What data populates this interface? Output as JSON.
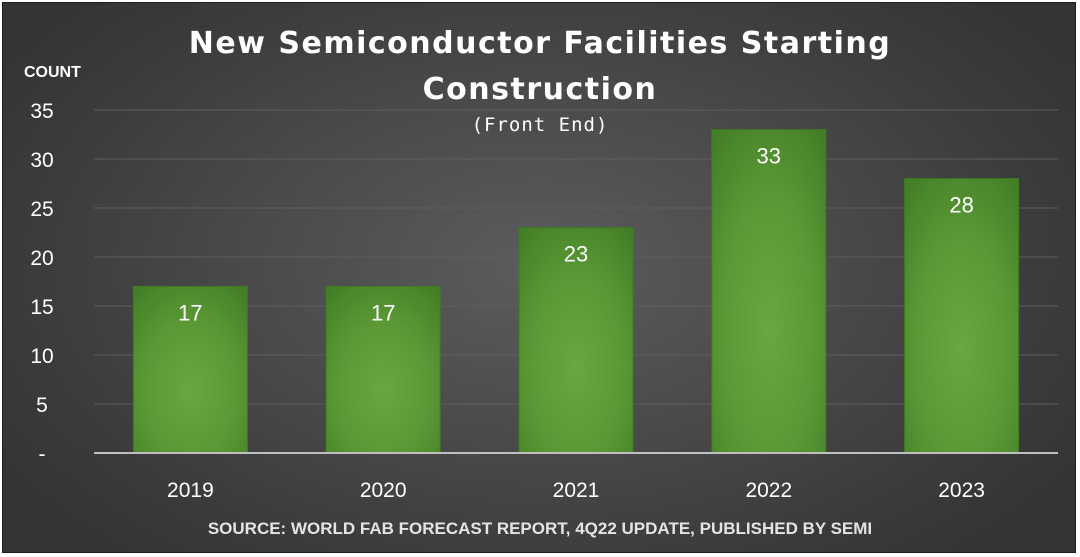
{
  "chart_data": {
    "type": "bar",
    "title_lines": [
      "New Semiconductor Facilities Starting",
      "Construction"
    ],
    "subtitle": "(Front End)",
    "ylabel": "COUNT",
    "xlabel": "",
    "categories": [
      "2019",
      "2020",
      "2021",
      "2022",
      "2023"
    ],
    "values": [
      17,
      17,
      23,
      33,
      28
    ],
    "data_labels": [
      "17",
      "17",
      "23",
      "33",
      "28"
    ],
    "ylim": [
      0,
      35
    ],
    "yticks": [
      0,
      5,
      10,
      15,
      20,
      25,
      30,
      35
    ],
    "ytick_labels": [
      "-",
      "5",
      "10",
      "15",
      "20",
      "25",
      "30",
      "35"
    ],
    "grid": true,
    "legend": "none",
    "source": "SOURCE: WORLD FAB FORECAST REPORT, 4Q22 UPDATE, PUBLISHED BY SEMI",
    "colors": {
      "bar": "#5f9e3a",
      "bar_dark": "#3f7a24",
      "background": "#444444",
      "grid": "#5e5e5e",
      "axis": "#bfbfbf",
      "text": "#ffffff"
    }
  }
}
